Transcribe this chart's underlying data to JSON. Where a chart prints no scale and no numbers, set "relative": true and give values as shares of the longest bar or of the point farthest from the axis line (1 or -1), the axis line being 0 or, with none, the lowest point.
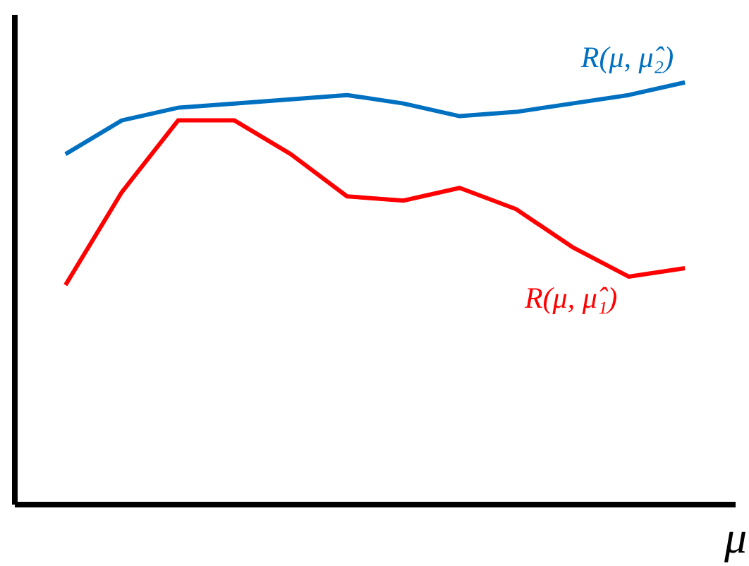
{
  "chart_data": {
    "type": "line",
    "relative": true,
    "xlabel": "μ",
    "categories": [
      null,
      null,
      null,
      null,
      null,
      null,
      null,
      null,
      null,
      null,
      null,
      null
    ],
    "series": [
      {
        "name": "R(μ, μ̂₂)",
        "color": "#0070c0",
        "values": [
          0.83,
          0.91,
          0.94,
          0.95,
          0.96,
          0.97,
          0.95,
          0.92,
          0.93,
          0.95,
          0.97,
          1.0
        ]
      },
      {
        "name": "R(μ, μ̂₁)",
        "color": "#ff0000",
        "values": [
          0.52,
          0.74,
          0.91,
          0.91,
          0.83,
          0.73,
          0.72,
          0.75,
          0.7,
          0.61,
          0.54,
          0.56
        ]
      }
    ],
    "tick_labels": false,
    "marker": "none",
    "line_style": "solid"
  }
}
